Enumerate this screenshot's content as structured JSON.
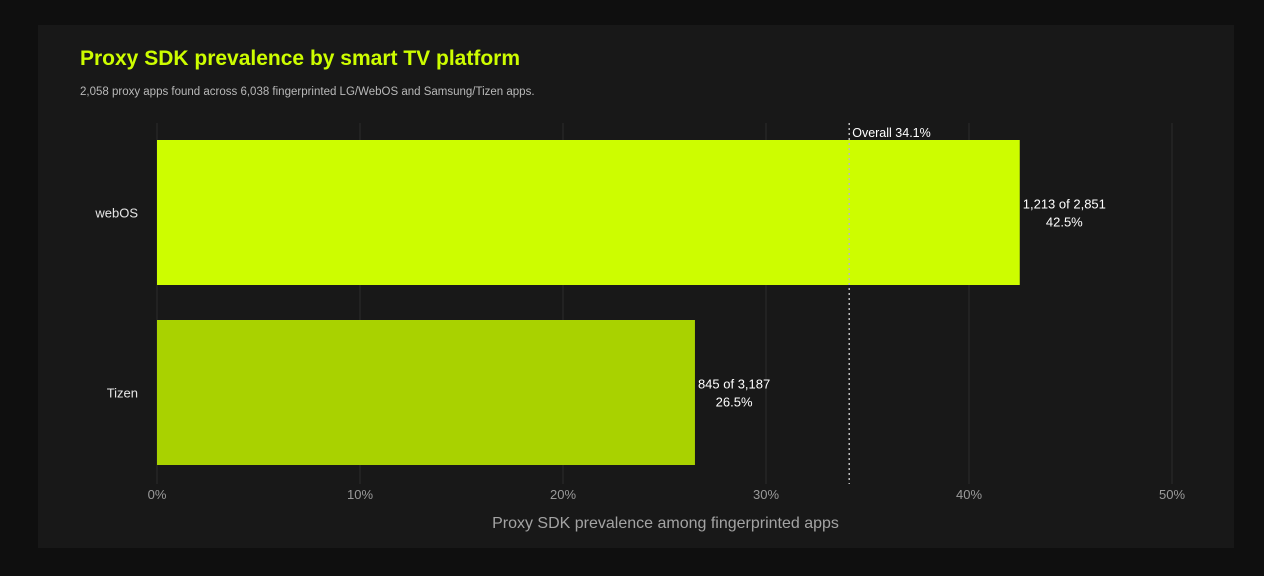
{
  "chart_data": {
    "type": "bar",
    "orientation": "horizontal",
    "title": "Proxy SDK prevalence by smart TV platform",
    "subtitle": "2,058 proxy apps found across 6,038 fingerprinted LG/WebOS and Samsung/Tizen apps.",
    "xlabel": "Proxy SDK prevalence among fingerprinted apps",
    "ylabel": "",
    "xlim": [
      0,
      50
    ],
    "x_ticks": [
      0,
      10,
      20,
      30,
      40,
      50
    ],
    "x_tick_labels": [
      "0%",
      "10%",
      "20%",
      "30%",
      "40%",
      "50%"
    ],
    "categories": [
      "webOS",
      "Tizen"
    ],
    "values": [
      42.5,
      26.5
    ],
    "bar_labels": [
      [
        "1,213 of 2,851",
        "42.5%"
      ],
      [
        "845 of 3,187",
        "26.5%"
      ]
    ],
    "bar_colors": [
      "#cdfd00",
      "#a9d200"
    ],
    "reference_line": {
      "value": 34.1,
      "label": "Overall 34.1%",
      "style": "dotted"
    },
    "grid": true,
    "legend": "none"
  }
}
